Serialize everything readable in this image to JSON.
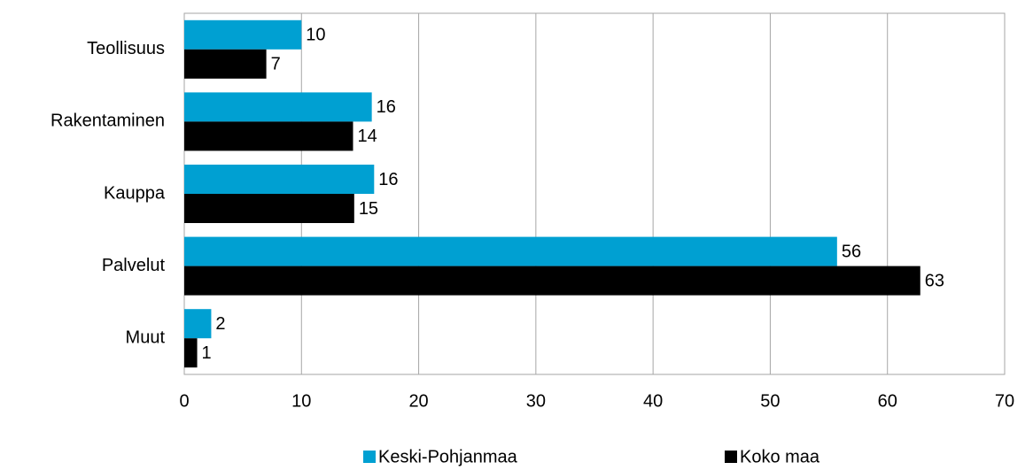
{
  "chart_data": {
    "type": "bar",
    "orientation": "horizontal",
    "categories": [
      "Teollisuus",
      "Rakentaminen",
      "Kauppa",
      "Palvelut",
      "Muut"
    ],
    "series": [
      {
        "name": "Keski-Pohjanmaa",
        "color": "#00a0d2",
        "values": [
          10.0,
          16.0,
          16.2,
          55.7,
          2.3
        ],
        "value_labels": [
          "10",
          "16",
          "16",
          "56",
          "2"
        ]
      },
      {
        "name": "Koko maa",
        "color": "#000000",
        "values": [
          7.0,
          14.4,
          14.5,
          62.8,
          1.1
        ],
        "value_labels": [
          "7",
          "14",
          "15",
          "63",
          "1"
        ]
      }
    ],
    "xlim": [
      0,
      70
    ],
    "xticks": [
      0,
      10,
      20,
      30,
      40,
      50,
      60,
      70
    ],
    "grid": true,
    "legend": "bottom"
  }
}
